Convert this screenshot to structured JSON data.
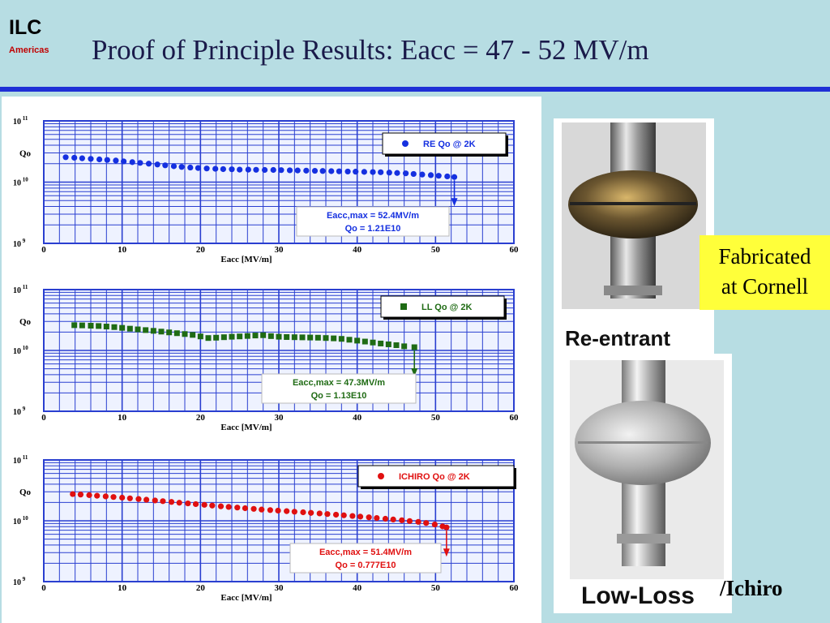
{
  "header": {
    "logo_main": "ILC",
    "logo_sub": "Americas",
    "title": "Proof of Principle Results: Eacc = 47 - 52 MV/m"
  },
  "photos": {
    "top_label": "Re-entrant",
    "bottom_label": "Low-Loss",
    "fabricated_line1": "Fabricated",
    "fabricated_line2": "at Cornell",
    "ichiro_suffix": "/Ichiro"
  },
  "colors": {
    "background": "#b7dde3",
    "rule": "#1f2fd6",
    "grid": "#2a3fd0",
    "plot_bg": "#eef2ff",
    "fabricated_box": "#ffff3a"
  },
  "chart_data": [
    {
      "type": "scatter",
      "title": "",
      "xlabel": "Eacc [MV/m]",
      "ylabel": "Qo",
      "xlim": [
        0,
        60
      ],
      "ylim": [
        1000000000.0,
        100000000000.0
      ],
      "yscale": "log",
      "x_ticks": [
        "0",
        "10",
        "20",
        "30",
        "40",
        "50",
        "60"
      ],
      "y_ticks": [
        {
          "base": "10",
          "exp": "11"
        },
        {
          "base": "10",
          "exp": "10"
        },
        {
          "base": "10",
          "exp": "9"
        }
      ],
      "grid": true,
      "legend_position": "top-right",
      "series": [
        {
          "name": "RE Qo @ 2K",
          "color": "#1530e0",
          "marker": "circle",
          "x": [
            2.8,
            3.9,
            4.9,
            6.0,
            7.1,
            8.1,
            9.2,
            10.2,
            11.3,
            12.3,
            13.4,
            14.5,
            15.5,
            16.6,
            17.6,
            18.7,
            19.7,
            20.8,
            21.9,
            22.9,
            24.0,
            25.0,
            26.1,
            27.1,
            28.2,
            29.3,
            30.3,
            31.4,
            32.4,
            33.5,
            34.6,
            35.6,
            36.7,
            37.7,
            38.8,
            39.8,
            40.9,
            42.0,
            43.0,
            44.1,
            45.1,
            46.2,
            47.2,
            48.3,
            49.4,
            50.4,
            51.5,
            52.4
          ],
          "y": [
            25500000000.0,
            25000000000.0,
            24500000000.0,
            24000000000.0,
            23500000000.0,
            23000000000.0,
            22500000000.0,
            21800000000.0,
            21200000000.0,
            20600000000.0,
            20000000000.0,
            19400000000.0,
            18800000000.0,
            18200000000.0,
            17700000000.0,
            17300000000.0,
            17000000000.0,
            16700000000.0,
            16500000000.0,
            16300000000.0,
            16200000000.0,
            16000000000.0,
            16000000000.0,
            15900000000.0,
            15800000000.0,
            15800000000.0,
            15700000000.0,
            15600000000.0,
            15500000000.0,
            15400000000.0,
            15300000000.0,
            15200000000.0,
            15100000000.0,
            15000000000.0,
            14900000000.0,
            14800000000.0,
            14700000000.0,
            14600000000.0,
            14500000000.0,
            14300000000.0,
            14100000000.0,
            13900000000.0,
            13600000000.0,
            13300000000.0,
            13000000000.0,
            12700000000.0,
            12400000000.0,
            12100000000.0
          ]
        }
      ],
      "annotation_line1": "Eacc,max = 52.4MV/m",
      "annotation_line2": "Qo = 1.21E10"
    },
    {
      "type": "scatter",
      "title": "",
      "xlabel": "Eacc [MV/m]",
      "ylabel": "Qo",
      "xlim": [
        0,
        60
      ],
      "ylim": [
        1000000000.0,
        100000000000.0
      ],
      "yscale": "log",
      "x_ticks": [
        "0",
        "10",
        "20",
        "30",
        "40",
        "50",
        "60"
      ],
      "y_ticks": [
        {
          "base": "10",
          "exp": "11"
        },
        {
          "base": "10",
          "exp": "10"
        },
        {
          "base": "10",
          "exp": "9"
        }
      ],
      "grid": true,
      "legend_position": "top-right",
      "series": [
        {
          "name": "LL Qo @ 2K",
          "color": "#1f6b14",
          "marker": "square",
          "x": [
            3.9,
            4.9,
            6.0,
            7.0,
            8.0,
            9.0,
            10.0,
            11.0,
            12.0,
            13.0,
            14.0,
            15.0,
            16.0,
            17.0,
            18.0,
            19.0,
            20.0,
            21.0,
            22.0,
            23.0,
            24.0,
            25.0,
            26.0,
            27.0,
            28.0,
            29.0,
            30.0,
            31.0,
            32.0,
            33.0,
            34.0,
            35.0,
            36.0,
            37.0,
            38.0,
            39.0,
            40.0,
            41.0,
            42.0,
            43.0,
            44.0,
            45.0,
            46.0,
            47.3
          ],
          "y": [
            26000000000.0,
            25800000000.0,
            25500000000.0,
            25200000000.0,
            24700000000.0,
            24200000000.0,
            23500000000.0,
            22800000000.0,
            22200000000.0,
            21600000000.0,
            21000000000.0,
            20400000000.0,
            19800000000.0,
            19200000000.0,
            18600000000.0,
            18000000000.0,
            17000000000.0,
            16000000000.0,
            16200000000.0,
            16500000000.0,
            16800000000.0,
            17000000000.0,
            17300000000.0,
            17600000000.0,
            17800000000.0,
            17200000000.0,
            16800000000.0,
            16600000000.0,
            16500000000.0,
            16400000000.0,
            16300000000.0,
            16200000000.0,
            16000000000.0,
            15800000000.0,
            15500000000.0,
            15000000000.0,
            14500000000.0,
            14000000000.0,
            13500000000.0,
            13000000000.0,
            12600000000.0,
            12200000000.0,
            11700000000.0,
            11300000000.0
          ]
        }
      ],
      "annotation_line1": "Eacc,max = 47.3MV/m",
      "annotation_line2": "Qo = 1.13E10"
    },
    {
      "type": "scatter",
      "title": "",
      "xlabel": "Eacc [MV/m]",
      "ylabel": "Qo",
      "xlim": [
        0,
        60
      ],
      "ylim": [
        1000000000.0,
        100000000000.0
      ],
      "yscale": "log",
      "x_ticks": [
        "0",
        "10",
        "20",
        "30",
        "40",
        "50",
        "60"
      ],
      "y_ticks": [
        {
          "base": "10",
          "exp": "11"
        },
        {
          "base": "10",
          "exp": "10"
        },
        {
          "base": "10",
          "exp": "9"
        }
      ],
      "grid": true,
      "legend_position": "top-right",
      "series": [
        {
          "name": "ICHIRO Qo @ 2K",
          "color": "#e01010",
          "marker": "circle",
          "x": [
            3.7,
            4.7,
            5.8,
            6.8,
            7.9,
            8.9,
            10.0,
            11.0,
            12.1,
            13.1,
            14.2,
            15.2,
            16.3,
            17.3,
            18.4,
            19.4,
            20.5,
            21.5,
            22.6,
            23.6,
            24.7,
            25.7,
            26.8,
            27.8,
            28.9,
            29.9,
            31.0,
            32.0,
            33.1,
            34.1,
            35.2,
            36.2,
            37.3,
            38.3,
            39.4,
            40.4,
            41.5,
            42.5,
            43.6,
            44.6,
            45.7,
            46.7,
            47.8,
            48.8,
            49.9,
            50.9,
            51.4
          ],
          "y": [
            27500000000.0,
            27000000000.0,
            26400000000.0,
            25800000000.0,
            25200000000.0,
            24600000000.0,
            24000000000.0,
            23400000000.0,
            22800000000.0,
            22200000000.0,
            21600000000.0,
            21000000000.0,
            20400000000.0,
            19800000000.0,
            19300000000.0,
            18800000000.0,
            18300000000.0,
            17800000000.0,
            17300000000.0,
            16900000000.0,
            16500000000.0,
            16100000000.0,
            15700000000.0,
            15300000000.0,
            15000000000.0,
            14700000000.0,
            14400000000.0,
            14100000000.0,
            13800000000.0,
            13500000000.0,
            13200000000.0,
            12900000000.0,
            12600000000.0,
            12300000000.0,
            12000000000.0,
            11700000000.0,
            11400000000.0,
            11100000000.0,
            10800000000.0,
            10500000000.0,
            10200000000.0,
            9900000000.0,
            9600000000.0,
            9200000000.0,
            8700000000.0,
            8100000000.0,
            7770000000.0
          ]
        }
      ],
      "annotation_line1": "Eacc,max = 51.4MV/m",
      "annotation_line2": "Qo = 0.777E10"
    }
  ]
}
